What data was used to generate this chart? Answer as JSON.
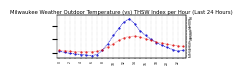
{
  "title": "Milwaukee Weather Outdoor Temperature (vs) THSW Index per Hour (Last 24 Hours)",
  "hours": [
    0,
    1,
    2,
    3,
    4,
    5,
    6,
    7,
    8,
    9,
    10,
    11,
    12,
    13,
    14,
    15,
    16,
    17,
    18,
    19,
    20,
    21,
    22,
    23
  ],
  "temp": [
    30,
    29,
    28,
    27,
    27,
    27,
    27,
    28,
    31,
    36,
    42,
    48,
    53,
    55,
    56,
    54,
    51,
    48,
    45,
    43,
    41,
    39,
    38,
    37
  ],
  "thsw": [
    28,
    26,
    24,
    23,
    22,
    21,
    20,
    22,
    30,
    42,
    57,
    70,
    82,
    88,
    78,
    65,
    57,
    50,
    44,
    39,
    35,
    31,
    28,
    30
  ],
  "temp_color": "#dd0000",
  "thsw_color": "#0000cc",
  "ylim": [
    15,
    95
  ],
  "yticks_right": [
    20,
    25,
    30,
    35,
    40,
    45,
    50,
    55,
    60,
    65,
    70,
    75,
    80,
    85,
    90
  ],
  "grid_color": "#aaaaaa",
  "bg_color": "#ffffff",
  "title_fontsize": 3.8,
  "tick_fontsize": 2.2
}
